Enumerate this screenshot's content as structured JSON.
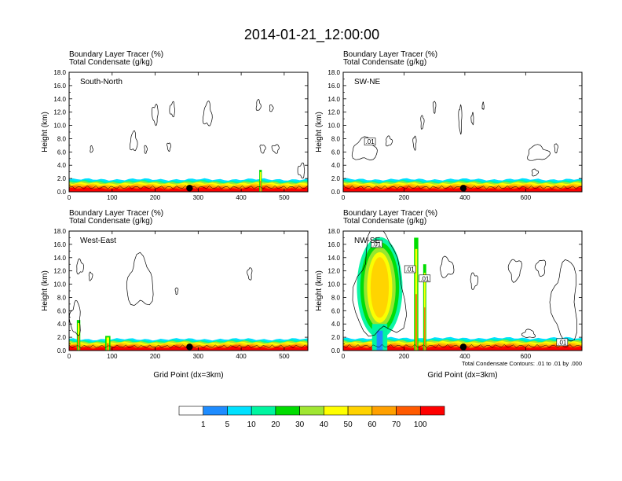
{
  "figure_title": "2014-01-21_12:00:00",
  "colors": {
    "levels": [
      "#ffffff",
      "#1e8cff",
      "#00e1ff",
      "#00f5a0",
      "#00dc00",
      "#a0e632",
      "#ffff00",
      "#ffd200",
      "#ffa000",
      "#ff5a00",
      "#ff0000"
    ],
    "contour": "#000000",
    "marker": "#000000"
  },
  "colorbar": {
    "labels": [
      "1",
      "5",
      "10",
      "20",
      "30",
      "40",
      "50",
      "60",
      "70",
      "100"
    ]
  },
  "chart_data": [
    {
      "type": "heatmap",
      "panel": "South-North",
      "title_line1": "Boundary Layer Tracer   (%)",
      "title_line2": "Total Condensate   (g/kg)",
      "ylabel": "Height (km)",
      "xlabel": "",
      "xlim": [
        0,
        555
      ],
      "ylim": [
        0,
        18
      ],
      "xticks": [
        "0",
        "100",
        "200",
        "300",
        "400",
        "500"
      ],
      "xtick_values": [
        0,
        100,
        200,
        300,
        400,
        500
      ],
      "yticks": [
        "0.0",
        "2.0",
        "4.0",
        "6.0",
        "8.0",
        "10.0",
        "12.0",
        "14.0",
        "16.0",
        "18.0"
      ],
      "marker_x": 280,
      "pbl_top_km": 1.2,
      "plumes": [
        {
          "x": 445,
          "top_km": 3.3,
          "width": 6
        }
      ],
      "clouds": [
        {
          "x": 150,
          "y": 7.5,
          "rx": 8,
          "ry": 1.4
        },
        {
          "x": 52,
          "y": 6.4,
          "rx": 3,
          "ry": 0.5
        },
        {
          "x": 178,
          "y": 6.4,
          "rx": 3,
          "ry": 0.6
        },
        {
          "x": 232,
          "y": 6.8,
          "rx": 4,
          "ry": 0.6
        },
        {
          "x": 200,
          "y": 11.7,
          "rx": 7,
          "ry": 1.4
        },
        {
          "x": 240,
          "y": 12.4,
          "rx": 6,
          "ry": 1.0
        },
        {
          "x": 322,
          "y": 11.6,
          "rx": 10,
          "ry": 1.7
        },
        {
          "x": 440,
          "y": 13.0,
          "rx": 5,
          "ry": 0.8
        },
        {
          "x": 470,
          "y": 12.6,
          "rx": 4,
          "ry": 0.5
        },
        {
          "x": 450,
          "y": 6.5,
          "rx": 6,
          "ry": 0.6
        },
        {
          "x": 480,
          "y": 6.5,
          "rx": 8,
          "ry": 0.6
        },
        {
          "x": 540,
          "y": 3.2,
          "rx": 8,
          "ry": 1.0
        }
      ],
      "box_labels": []
    },
    {
      "type": "heatmap",
      "panel": "SW-NE",
      "title_line1": "Boundary Layer Tracer   (%)",
      "title_line2": "Total Condensate   (g/kg)",
      "ylabel": "Height (km)",
      "xlabel": "",
      "xlim": [
        0,
        785
      ],
      "ylim": [
        0,
        18
      ],
      "xticks": [
        "0",
        "200",
        "400",
        "600"
      ],
      "xtick_values": [
        0,
        200,
        400,
        600
      ],
      "yticks": [
        "0.0",
        "2.0",
        "4.0",
        "6.0",
        "8.0",
        "10.0",
        "12.0",
        "14.0",
        "16.0",
        "18.0"
      ],
      "marker_x": 395,
      "pbl_top_km": 1.2,
      "plumes": [],
      "clouds": [
        {
          "x": 70,
          "y": 6.3,
          "rx": 40,
          "ry": 1.6
        },
        {
          "x": 150,
          "y": 7.6,
          "rx": 10,
          "ry": 0.7
        },
        {
          "x": 260,
          "y": 10.5,
          "rx": 5,
          "ry": 1.0
        },
        {
          "x": 300,
          "y": 12.8,
          "rx": 4,
          "ry": 0.9
        },
        {
          "x": 385,
          "y": 11.0,
          "rx": 5,
          "ry": 2.0
        },
        {
          "x": 425,
          "y": 11.0,
          "rx": 4,
          "ry": 0.8
        },
        {
          "x": 460,
          "y": 12.9,
          "rx": 3,
          "ry": 0.5
        },
        {
          "x": 640,
          "y": 5.8,
          "rx": 35,
          "ry": 1.1
        },
        {
          "x": 630,
          "y": 2.9,
          "rx": 10,
          "ry": 0.5
        },
        {
          "x": 700,
          "y": 6.6,
          "rx": 5,
          "ry": 0.7
        },
        {
          "x": 235,
          "y": 7.4,
          "rx": 5,
          "ry": 1.0
        }
      ],
      "box_labels": [
        {
          "text": ".01",
          "x": 88,
          "y": 7.5
        }
      ]
    },
    {
      "type": "heatmap",
      "panel": "West-East",
      "title_line1": "Boundary Layer Tracer   (%)",
      "title_line2": "Total Condensate   (g/kg)",
      "ylabel": "Height (km)",
      "xlabel": "Grid Point (dx=3km)",
      "xlim": [
        0,
        555
      ],
      "ylim": [
        0,
        18
      ],
      "xticks": [
        "0",
        "100",
        "200",
        "300",
        "400",
        "500"
      ],
      "xtick_values": [
        0,
        100,
        200,
        300,
        400,
        500
      ],
      "yticks": [
        "0.0",
        "2.0",
        "4.0",
        "6.0",
        "8.0",
        "10.0",
        "12.0",
        "14.0",
        "16.0",
        "18.0"
      ],
      "marker_x": 280,
      "pbl_top_km": 1.1,
      "plumes": [
        {
          "x": 22,
          "top_km": 4.6,
          "width": 8
        },
        {
          "x": 90,
          "top_km": 2.2,
          "width": 12
        }
      ],
      "clouds": [
        {
          "x": 165,
          "y": 10.2,
          "rx": 30,
          "ry": 3.6
        },
        {
          "x": 25,
          "y": 12.6,
          "rx": 8,
          "ry": 1.0
        },
        {
          "x": 50,
          "y": 11.2,
          "rx": 4,
          "ry": 0.6
        },
        {
          "x": 250,
          "y": 9.0,
          "rx": 3,
          "ry": 0.5
        },
        {
          "x": 420,
          "y": 11.6,
          "rx": 5,
          "ry": 0.9
        },
        {
          "x": 15,
          "y": 4.8,
          "rx": 12,
          "ry": 2.4
        }
      ],
      "box_labels": []
    },
    {
      "type": "heatmap",
      "panel": "NW-SE",
      "title_line1": "Boundary Layer Tracer   (%)",
      "title_line2": "Total Condensate   (g/kg)",
      "ylabel": "Height (km)",
      "xlabel": "Grid Point (dx=3km)",
      "xlim": [
        0,
        785
      ],
      "ylim": [
        0,
        18
      ],
      "xticks": [
        "0",
        "200",
        "400",
        "600"
      ],
      "xtick_values": [
        0,
        200,
        400,
        600
      ],
      "yticks": [
        "0.0",
        "2.0",
        "4.0",
        "6.0",
        "8.0",
        "10.0",
        "12.0",
        "14.0",
        "16.0",
        "18.0"
      ],
      "marker_x": 395,
      "pbl_top_km": 1.2,
      "plumes": [
        {
          "x": 120,
          "top_km": 17.3,
          "width": 150,
          "kind": "anvil"
        },
        {
          "x": 240,
          "top_km": 17.0,
          "width": 14
        },
        {
          "x": 268,
          "top_km": 13.0,
          "width": 10
        }
      ],
      "clouds": [
        {
          "x": 120,
          "y": 9.5,
          "rx": 80,
          "ry": 7.8
        },
        {
          "x": 340,
          "y": 12.5,
          "rx": 22,
          "ry": 1.4
        },
        {
          "x": 430,
          "y": 10.5,
          "rx": 12,
          "ry": 1.1
        },
        {
          "x": 565,
          "y": 12.2,
          "rx": 20,
          "ry": 1.6
        },
        {
          "x": 650,
          "y": 12.5,
          "rx": 15,
          "ry": 1.2
        },
        {
          "x": 730,
          "y": 7.3,
          "rx": 40,
          "ry": 6.0
        },
        {
          "x": 610,
          "y": 2.5,
          "rx": 20,
          "ry": 0.6
        }
      ],
      "box_labels": [
        {
          "text": ".01",
          "x": 110,
          "y": 16.0
        },
        {
          "text": ".01",
          "x": 220,
          "y": 12.2
        },
        {
          "text": ".01",
          "x": 268,
          "y": 10.8
        },
        {
          "text": ".01",
          "x": 720,
          "y": 1.2
        }
      ],
      "note": "Total Condensate Contours: .01 to .01 by .000"
    }
  ]
}
